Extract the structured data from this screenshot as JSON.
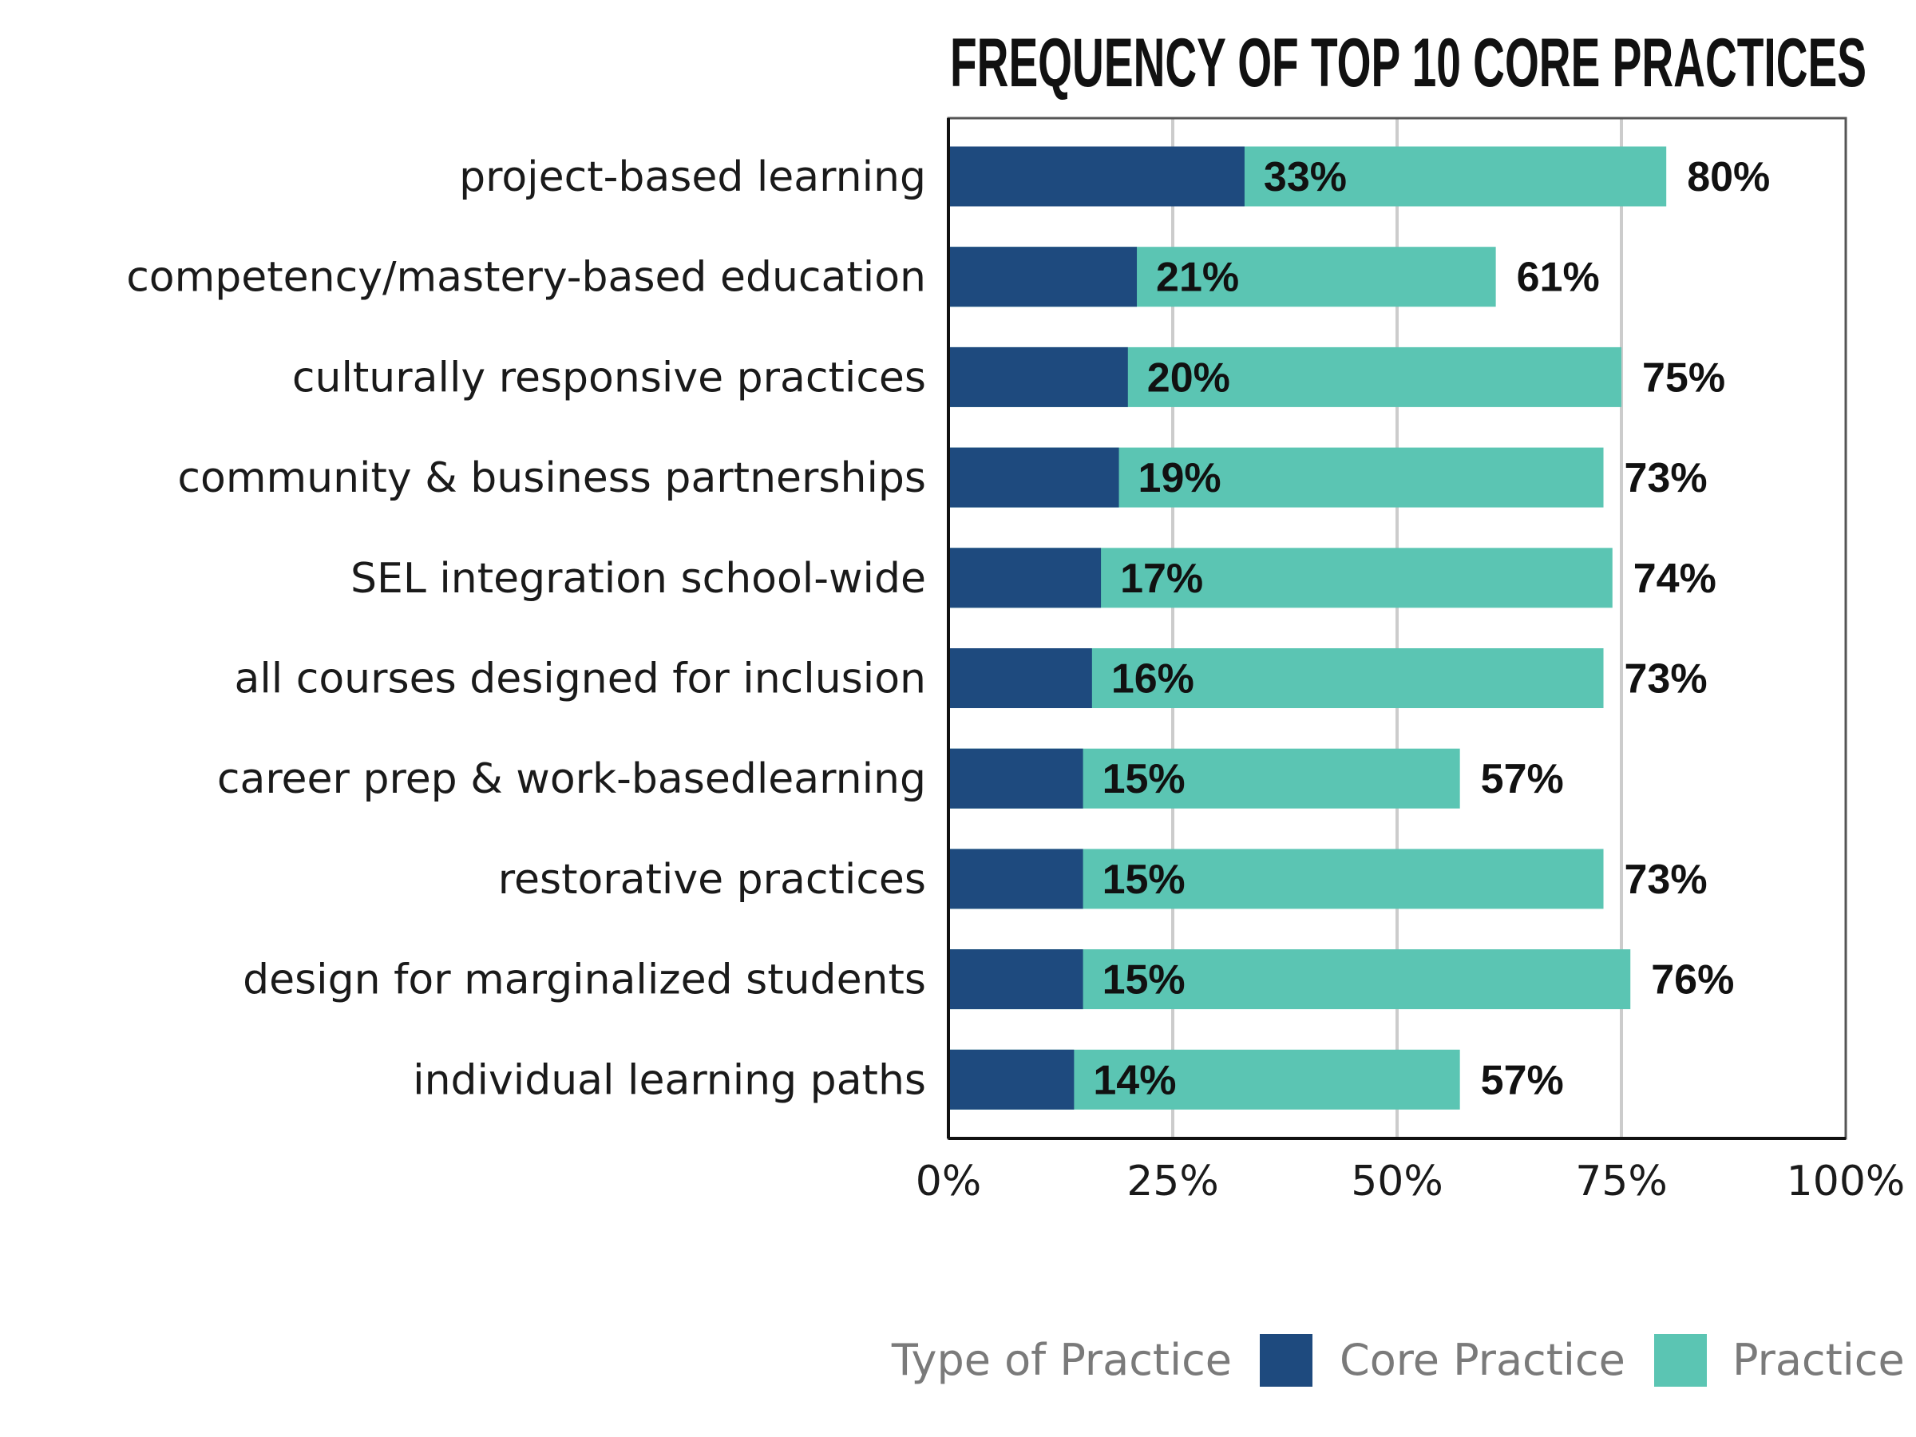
{
  "chart_data": {
    "type": "bar",
    "orientation": "horizontal",
    "stacked": false,
    "overlapping": true,
    "title": "FREQUENCY OF TOP 10 CORE PRACTICES",
    "categories": [
      "project-based learning",
      "competency/mastery-based education",
      "culturally responsive practices",
      "community & business partnerships",
      "SEL integration school-wide",
      "all courses designed for inclusion",
      "career prep & work-basedlearning",
      "restorative practices",
      "design for marginalized students",
      "individual learning paths"
    ],
    "series": [
      {
        "name": "Core Practice",
        "color": "#1e4a7e",
        "values": [
          33,
          21,
          20,
          19,
          17,
          16,
          15,
          15,
          15,
          14
        ],
        "labels": [
          "33%",
          "21%",
          "20%",
          "19%",
          "17%",
          "16%",
          "15%",
          "15%",
          "15%",
          "14%"
        ]
      },
      {
        "name": "Practice",
        "color": "#5bc5b3",
        "values": [
          80,
          61,
          75,
          73,
          74,
          73,
          57,
          73,
          76,
          57
        ],
        "labels": [
          "80%",
          "61%",
          "75%",
          "73%",
          "74%",
          "73%",
          "57%",
          "73%",
          "76%",
          "57%"
        ]
      }
    ],
    "xlim": [
      0,
      100
    ],
    "xticks": [
      0,
      25,
      50,
      75,
      100
    ],
    "xtick_labels": [
      "0%",
      "25%",
      "50%",
      "75%",
      "100%"
    ],
    "xlabel": "",
    "ylabel": "",
    "grid": "vertical",
    "legend": {
      "title": "Type of Practice",
      "position": "bottom-right",
      "entries": [
        "Core Practice",
        "Practice"
      ]
    }
  }
}
